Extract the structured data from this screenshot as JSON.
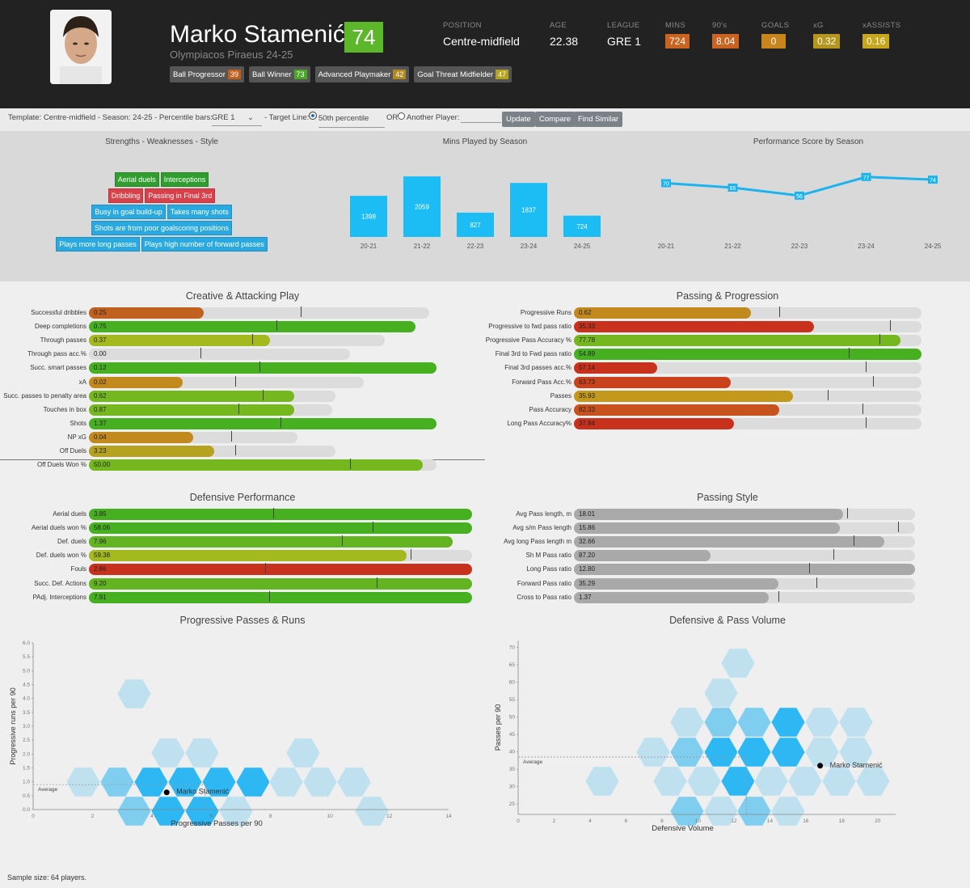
{
  "player": {
    "name": "Marko Stamenić",
    "score": "74",
    "club": "Olympiacos Piraeus 24-25",
    "roles": [
      {
        "label": "Ball Progressor",
        "value": "39",
        "color": "#c06020"
      },
      {
        "label": "Ball Winner",
        "value": "73",
        "color": "#4aa52a"
      },
      {
        "label": "Advanced Playmaker",
        "value": "42",
        "color": "#b08a20"
      },
      {
        "label": "Goal Threat Midfielder",
        "value": "47",
        "color": "#b5a21f"
      }
    ],
    "stats": [
      {
        "label": "POSITION",
        "value": "Centre-midfield"
      },
      {
        "label": "AGE",
        "value": "22.38"
      },
      {
        "label": "LEAGUE",
        "value": "GRE 1"
      },
      {
        "label": "MINS",
        "value": "724",
        "color": "#c9631f"
      },
      {
        "label": "90's",
        "value": "8.04",
        "color": "#c9631f"
      },
      {
        "label": "GOALS",
        "value": "0",
        "color": "#c7851c"
      },
      {
        "label": "xG",
        "value": "0.32",
        "color": "#b5951c"
      },
      {
        "label": "xASSISTS",
        "value": "0.16",
        "color": "#c8a61c"
      }
    ]
  },
  "toolbar": {
    "template_text": "Template: Centre-midfield - Season: 24-25 - Percentile bars:",
    "league_select": "GRE 1",
    "target_label": "- Target Line:",
    "percentile_value": "50th percentile",
    "or_label": "OR",
    "another_label": "Another Player:",
    "update_label": "Update",
    "compare_label": "Compare",
    "similar_label": "Find Similar"
  },
  "band": {
    "strengths_title": "Strengths - Weaknesses - Style",
    "mins_title": "Mins Played by Season",
    "perf_title": "Performance Score by Season",
    "tags": [
      [
        {
          "text": "Aerial duels",
          "color": "#2f9e2f"
        },
        {
          "text": "Interceptions",
          "color": "#2f9e2f"
        }
      ],
      [
        {
          "text": "Dribbling",
          "color": "#d9414a"
        },
        {
          "text": "Passing in Final 3rd",
          "color": "#d9414a"
        }
      ],
      [
        {
          "text": "Busy in goal build-up",
          "color": "#29a9e0"
        },
        {
          "text": "Takes many shots",
          "color": "#29a9e0"
        },
        {
          "text": "Shots are from poor goalscoring positions",
          "color": "#29a9e0"
        }
      ],
      [
        {
          "text": "Plays more long passes",
          "color": "#29a9e0"
        },
        {
          "text": "Plays high number of forward passes",
          "color": "#29a9e0"
        }
      ]
    ]
  },
  "sections": {
    "creative_title": "Creative & Attacking Play",
    "passing_title": "Passing & Progression",
    "defensive_title": "Defensive Performance",
    "style_title": "Passing Style",
    "prog_title": "Progressive Passes & Runs",
    "defvol_title": "Defensive & Pass Volume",
    "creative": [
      {
        "label": "Successful dribbles",
        "value": "0.25",
        "fill": 0.33,
        "track": 0.98,
        "mark": 0.61,
        "color": "#c0611f"
      },
      {
        "label": "Deep completions",
        "value": "0.75",
        "fill": 0.94,
        "track": 0.94,
        "mark": 0.54,
        "color": "#46b021"
      },
      {
        "label": "Through passes",
        "value": "0.37",
        "fill": 0.52,
        "track": 0.85,
        "mark": 0.47,
        "color": "#a3b91d"
      },
      {
        "label": "Through pass acc.%",
        "value": "0.00",
        "fill": 0.0,
        "track": 0.75,
        "mark": 0.32,
        "color": "#c0611f"
      },
      {
        "label": "Succ. smart passes",
        "value": "0.12",
        "fill": 1.0,
        "track": 1.0,
        "mark": 0.49,
        "color": "#46b021"
      },
      {
        "label": "xA",
        "value": "0.02",
        "fill": 0.27,
        "track": 0.79,
        "mark": 0.42,
        "color": "#c2891d"
      },
      {
        "label": "Succ. passes to penalty area",
        "value": "0.62",
        "fill": 0.59,
        "track": 0.71,
        "mark": 0.5,
        "color": "#74b71f"
      },
      {
        "label": "Touches in box",
        "value": "0.87",
        "fill": 0.59,
        "track": 0.7,
        "mark": 0.43,
        "color": "#74b71f"
      },
      {
        "label": "Shots",
        "value": "1.37",
        "fill": 1.0,
        "track": 1.0,
        "mark": 0.55,
        "color": "#46b021"
      },
      {
        "label": "NP xG",
        "value": "0.04",
        "fill": 0.3,
        "track": 0.6,
        "mark": 0.41,
        "color": "#c2891d"
      },
      {
        "label": "Off Duels",
        "value": "3.23",
        "fill": 0.36,
        "track": 0.71,
        "mark": 0.42,
        "color": "#b5a21f"
      },
      {
        "label": "Off Duels Won %",
        "value": "50.00",
        "fill": 0.96,
        "track": 1.0,
        "mark": 0.75,
        "color": "#74b71f"
      }
    ],
    "passing": [
      {
        "label": "Progressive Runs",
        "value": "0.62",
        "fill": 0.51,
        "track": 1.0,
        "mark": 0.59,
        "color": "#c2891d"
      },
      {
        "label": "Progressive to fwd pass ratio",
        "value": "35.33",
        "fill": 0.69,
        "track": 1.0,
        "mark": 0.91,
        "color": "#c8321d"
      },
      {
        "label": "Progressive Pass Accuracy %",
        "value": "77.78",
        "fill": 0.94,
        "track": 1.0,
        "mark": 0.88,
        "color": "#74b71f"
      },
      {
        "label": "Final 3rd to Fwd pass ratio",
        "value": "54.89",
        "fill": 1.0,
        "track": 1.0,
        "mark": 0.79,
        "color": "#46b021"
      },
      {
        "label": "Final 3rd passes acc.%",
        "value": "57.14",
        "fill": 0.24,
        "track": 1.0,
        "mark": 0.84,
        "color": "#c8321d"
      },
      {
        "label": "Forward Pass Acc.%",
        "value": "63.73",
        "fill": 0.45,
        "track": 1.0,
        "mark": 0.86,
        "color": "#c8431d"
      },
      {
        "label": "Passes",
        "value": "35.93",
        "fill": 0.63,
        "track": 1.0,
        "mark": 0.73,
        "color": "#c2991d"
      },
      {
        "label": "Pass Accuracy",
        "value": "82.33",
        "fill": 0.59,
        "track": 1.0,
        "mark": 0.83,
        "color": "#c8521d"
      },
      {
        "label": "Long Pass Accuracy%",
        "value": "37.84",
        "fill": 0.46,
        "track": 1.0,
        "mark": 0.84,
        "color": "#c8321d"
      }
    ],
    "defensive": [
      {
        "label": "Aerial duels",
        "value": "3.85",
        "fill": 1.0,
        "track": 1.0,
        "mark": 0.48,
        "color": "#46b021"
      },
      {
        "label": "Aerial duels won %",
        "value": "58.06",
        "fill": 1.0,
        "track": 1.0,
        "mark": 0.74,
        "color": "#46b021"
      },
      {
        "label": "Def. duels",
        "value": "7.96",
        "fill": 0.95,
        "track": 0.95,
        "mark": 0.66,
        "color": "#62b521"
      },
      {
        "label": "Def. duels won %",
        "value": "59.38",
        "fill": 0.83,
        "track": 1.0,
        "mark": 0.84,
        "color": "#a3b91d"
      },
      {
        "label": "Fouls",
        "value": "2.86",
        "fill": 1.0,
        "track": 1.0,
        "mark": 0.46,
        "color": "#c8321d"
      },
      {
        "label": "Succ. Def. Actions",
        "value": "9.20",
        "fill": 1.0,
        "track": 1.0,
        "mark": 0.75,
        "color": "#62b521"
      },
      {
        "label": "PAdj. Interceptions",
        "value": "7.91",
        "fill": 1.0,
        "track": 1.0,
        "mark": 0.47,
        "color": "#46b021"
      }
    ],
    "style": [
      {
        "label": "Avg Pass length, m",
        "value": "18.01",
        "fill": 0.79,
        "track": 1.0,
        "mark": 0.8,
        "color": "#a9a9a9"
      },
      {
        "label": "Avg s/m Pass length",
        "value": "15.86",
        "fill": 0.78,
        "track": 1.0,
        "mark": 0.95,
        "color": "#a9a9a9"
      },
      {
        "label": "Avg long Pass length m",
        "value": "32.66",
        "fill": 0.91,
        "track": 1.0,
        "mark": 0.82,
        "color": "#a9a9a9"
      },
      {
        "label": "Sh M Pass ratio",
        "value": "87.20",
        "fill": 0.4,
        "track": 1.0,
        "mark": 0.76,
        "color": "#a9a9a9"
      },
      {
        "label": "Long Pass ratio",
        "value": "12.80",
        "fill": 1.0,
        "track": 1.0,
        "mark": 0.69,
        "color": "#a9a9a9"
      },
      {
        "label": "Forward Pass ratio",
        "value": "35.29",
        "fill": 0.6,
        "track": 1.0,
        "mark": 0.71,
        "color": "#a9a9a9"
      },
      {
        "label": "Cross to Pass ratio",
        "value": "1.37",
        "fill": 0.57,
        "track": 1.0,
        "mark": 0.6,
        "color": "#a9a9a9"
      }
    ]
  },
  "footer": {
    "sample": "Sample size: 64 players."
  },
  "chart_data": [
    {
      "type": "bar",
      "title": "Mins Played by Season",
      "categories": [
        "20-21",
        "21-22",
        "22-23",
        "23-24",
        "24-25"
      ],
      "values": [
        1398,
        2059,
        827,
        1837,
        724
      ]
    },
    {
      "type": "line",
      "title": "Performance Score by Season",
      "categories": [
        "20-21",
        "21-22",
        "22-23",
        "23-24",
        "24-25"
      ],
      "values": [
        70,
        65,
        56,
        77,
        74
      ]
    },
    {
      "type": "heatmap",
      "title": "Progressive Passes & Runs",
      "xlabel": "Progressive Passes per 90",
      "ylabel": "Progressive runs per 90",
      "xlim": [
        0,
        14
      ],
      "ylim": [
        0,
        6.0
      ],
      "xticks": [
        "0",
        "2",
        "4",
        "6",
        "8",
        "10",
        "12",
        "14"
      ],
      "yticks": [
        "0.0",
        "0.5",
        "1.0",
        "1.5",
        "2.0",
        "2.5",
        "3.0",
        "3.5",
        "4.0",
        "4.5",
        "5.0",
        "5.5",
        "6.0"
      ],
      "point": {
        "label": "Marko Stamenić",
        "x": 4.5,
        "y": 0.62
      },
      "average_label": "Average",
      "average": {
        "x": 5.8,
        "y": 0.9
      }
    },
    {
      "type": "heatmap",
      "title": "Defensive & Pass Volume",
      "xlabel": "Defensive Volume",
      "ylabel": "Passes per 90",
      "xlim": [
        0,
        21
      ],
      "ylim": [
        22,
        72
      ],
      "xticks": [
        "0",
        "2",
        "4",
        "6",
        "8",
        "10",
        "12",
        "14",
        "16",
        "18",
        "20"
      ],
      "yticks": [
        "25",
        "30",
        "35",
        "40",
        "45",
        "50",
        "55",
        "60",
        "65",
        "70"
      ],
      "point": {
        "label": "Marko Stamenić",
        "x": 16.8,
        "y": 36
      },
      "average_label": "Average",
      "average": {
        "x": 12.7,
        "y": 38.5
      }
    }
  ]
}
